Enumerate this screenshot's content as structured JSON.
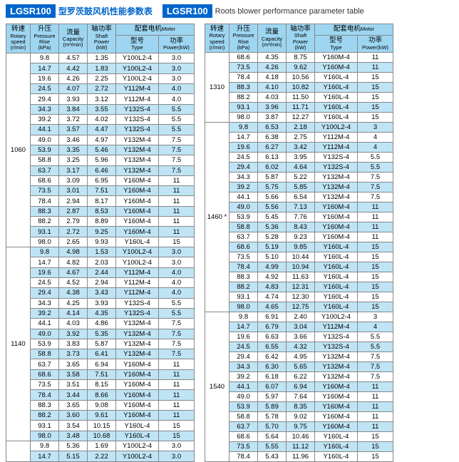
{
  "title": {
    "box": "LGSR100",
    "cn": "型罗茨鼓风机性能参数表",
    "box2": "LGSR100",
    "en": "Roots blower performance parameter table"
  },
  "headers": {
    "speed": {
      "cn": "转速",
      "en": "Rotary speed",
      "un": "(r/min)"
    },
    "press": {
      "cn": "升压",
      "en": "Pressure Rise",
      "un": "(kPa)"
    },
    "cap": {
      "cn": "流量",
      "en": "Capacity",
      "un": "(m³/min)"
    },
    "shaft": {
      "cn": "轴功率",
      "en": "Shaft Power",
      "un": "(kW)"
    },
    "motor": {
      "cn": "配套电机",
      "en": "Motor"
    },
    "type": {
      "cn": "型号",
      "en": "Type"
    },
    "power": {
      "cn": "功率",
      "en": "Power(kW)"
    }
  },
  "colors": {
    "header_bg": "#9ed6f2",
    "band_bg": "#bfe4f5",
    "border": "#888888",
    "title_blue": "#0066cc"
  },
  "left": [
    {
      "speed": "1060",
      "rows": [
        [
          "9.8",
          "4.57",
          "1.35",
          "Y100L2-4",
          "3.0"
        ],
        [
          "14.7",
          "4.42",
          "1.83",
          "Y100L2-4",
          "3.0"
        ],
        [
          "19.6",
          "4.26",
          "2.25",
          "Y100L2-4",
          "3.0"
        ],
        [
          "24.5",
          "4.07",
          "2.72",
          "Y112M-4",
          "4.0"
        ],
        [
          "29.4",
          "3.93",
          "3.12",
          "Y112M-4",
          "4.0"
        ],
        [
          "34.3",
          "3.84",
          "3.55",
          "Y132S-4",
          "5.5"
        ],
        [
          "39.2",
          "3.72",
          "4.02",
          "Y132S-4",
          "5.5"
        ],
        [
          "44.1",
          "3.57",
          "4.47",
          "Y132S-4",
          "5.5"
        ],
        [
          "49.0",
          "3.46",
          "4.97",
          "Y132M-4",
          "7.5"
        ],
        [
          "53.9",
          "3.35",
          "5.46",
          "Y132M-4",
          "7.5"
        ],
        [
          "58.8",
          "3.25",
          "5.96",
          "Y132M-4",
          "7.5"
        ],
        [
          "63.7",
          "3.17",
          "6.46",
          "Y132M-4",
          "7.5"
        ],
        [
          "68.6",
          "3.09",
          "6.95",
          "Y160M-4",
          "11"
        ],
        [
          "73.5",
          "3.01",
          "7.51",
          "Y160M-4",
          "11"
        ],
        [
          "78.4",
          "2.94",
          "8.17",
          "Y160M-4",
          "11"
        ],
        [
          "88.3",
          "2.87",
          "8.53",
          "Y160M-4",
          "11"
        ],
        [
          "88.2",
          "2.79",
          "8.89",
          "Y160M-4",
          "11"
        ],
        [
          "93.1",
          "2.72",
          "9.25",
          "Y160M-4",
          "11"
        ],
        [
          "98.0",
          "2.65",
          "9.93",
          "Y160L-4",
          "15"
        ]
      ]
    },
    {
      "speed": "1140",
      "rows": [
        [
          "9.8",
          "4.98",
          "1.53",
          "Y100L2-4",
          "3.0"
        ],
        [
          "14.7",
          "4.82",
          "2.03",
          "Y100L2-4",
          "3.0"
        ],
        [
          "19.6",
          "4.67",
          "2.44",
          "Y112M-4",
          "4.0"
        ],
        [
          "24.5",
          "4.52",
          "2.94",
          "Y112M-4",
          "4.0"
        ],
        [
          "29.4",
          "4.38",
          "3.43",
          "Y112M-4",
          "4.0"
        ],
        [
          "34.3",
          "4.25",
          "3.93",
          "Y132S-4",
          "5.5"
        ],
        [
          "39.2",
          "4.14",
          "4.35",
          "Y132S-4",
          "5.5"
        ],
        [
          "44.1",
          "4.03",
          "4.86",
          "Y132M-4",
          "7.5"
        ],
        [
          "49.0",
          "3.92",
          "5.35",
          "Y132M-4",
          "7.5"
        ],
        [
          "53.9",
          "3.83",
          "5.87",
          "Y132M-4",
          "7.5"
        ],
        [
          "58.8",
          "3.73",
          "6.41",
          "Y132M-4",
          "7.5"
        ],
        [
          "63.7",
          "3.65",
          "6.94",
          "Y160M-4",
          "11"
        ],
        [
          "68.6",
          "3.58",
          "7.51",
          "Y160M-4",
          "11"
        ],
        [
          "73.5",
          "3.51",
          "8.15",
          "Y160M-4",
          "11"
        ],
        [
          "78.4",
          "3.44",
          "8.66",
          "Y160M-4",
          "11"
        ],
        [
          "88.3",
          "3.65",
          "9.08",
          "Y160M-4",
          "11"
        ],
        [
          "88.2",
          "3.60",
          "9.61",
          "Y160M-4",
          "11"
        ],
        [
          "93.1",
          "3.54",
          "10.15",
          "Y160L-4",
          "15"
        ],
        [
          "98.0",
          "3.48",
          "10.68",
          "Y160L-4",
          "15"
        ]
      ]
    },
    {
      "speed": "",
      "rows": [
        [
          "9.8",
          "5.36",
          "1.69",
          "Y100L2-4",
          "3.0"
        ],
        [
          "14.7",
          "5.15",
          "2.22",
          "Y100L2-4",
          "3.0"
        ]
      ]
    }
  ],
  "right": [
    {
      "speed": "1310",
      "rows": [
        [
          "68.6",
          "4.35",
          "8.75",
          "Y160M-4",
          "11"
        ],
        [
          "73.5",
          "4.26",
          "9.62",
          "Y160M-4",
          "11"
        ],
        [
          "78.4",
          "4.18",
          "10.56",
          "Y160L-4",
          "15"
        ],
        [
          "88.3",
          "4.10",
          "10.82",
          "Y160L-4",
          "15"
        ],
        [
          "88.2",
          "4.03",
          "11.50",
          "Y160L-4",
          "15"
        ],
        [
          "93.1",
          "3.96",
          "11.71",
          "Y160L-4",
          "15"
        ],
        [
          "98.0",
          "3.87",
          "12.27",
          "Y160L-4",
          "15"
        ]
      ]
    },
    {
      "speed": "1460 *",
      "rows": [
        [
          "9.8",
          "6.53",
          "2.18",
          "Y100L2-4",
          "3"
        ],
        [
          "14.7",
          "6.38",
          "2.75",
          "Y112M-4",
          "4"
        ],
        [
          "19.6",
          "6.27",
          "3.42",
          "Y112M-4",
          "4"
        ],
        [
          "24.5",
          "6.13",
          "3.95",
          "Y132S-4",
          "5.5"
        ],
        [
          "29.4",
          "6.02",
          "4.64",
          "Y132S-4",
          "5.5"
        ],
        [
          "34.3",
          "5.87",
          "5.22",
          "Y132M-4",
          "7.5"
        ],
        [
          "39.2",
          "5.75",
          "5.85",
          "Y132M-4",
          "7.5"
        ],
        [
          "44.1",
          "5.66",
          "6.54",
          "Y132M-4",
          "7.5"
        ],
        [
          "49.0",
          "5.56",
          "7.13",
          "Y160M-4",
          "11"
        ],
        [
          "53.9",
          "5.45",
          "7.76",
          "Y160M-4",
          "11"
        ],
        [
          "58.8",
          "5.36",
          "8.43",
          "Y160M-4",
          "11"
        ],
        [
          "63.7",
          "5.28",
          "9.23",
          "Y160M-4",
          "11"
        ],
        [
          "68.6",
          "5.19",
          "9.85",
          "Y160L-4",
          "15"
        ],
        [
          "73.5",
          "5.10",
          "10.44",
          "Y160L-4",
          "15"
        ],
        [
          "78.4",
          "4.99",
          "10.94",
          "Y160L-4",
          "15"
        ],
        [
          "88.3",
          "4.92",
          "11.63",
          "Y160L-4",
          "15"
        ],
        [
          "88.2",
          "4.83",
          "12.31",
          "Y160L-4",
          "15"
        ],
        [
          "93.1",
          "4.74",
          "12.30",
          "Y160L-4",
          "15"
        ],
        [
          "98.0",
          "4.65",
          "12.75",
          "Y160L-4",
          "15"
        ]
      ]
    },
    {
      "speed": "1540",
      "rows": [
        [
          "9.8",
          "6.91",
          "2.40",
          "Y100L2-4",
          "3"
        ],
        [
          "14.7",
          "6.79",
          "3.04",
          "Y112M-4",
          "4"
        ],
        [
          "19.6",
          "6.63",
          "3.66",
          "Y132S-4",
          "5.5"
        ],
        [
          "24.5",
          "6.55",
          "4.32",
          "Y132S-4",
          "5.5"
        ],
        [
          "29.4",
          "6.42",
          "4.95",
          "Y132M-4",
          "7.5"
        ],
        [
          "34.3",
          "6.30",
          "5.65",
          "Y132M-4",
          "7.5"
        ],
        [
          "39.2",
          "6.18",
          "6.22",
          "Y132M-4",
          "7.5"
        ],
        [
          "44.1",
          "6.07",
          "6.94",
          "Y160M-4",
          "11"
        ],
        [
          "49.0",
          "5.97",
          "7.64",
          "Y160M-4",
          "11"
        ],
        [
          "53.9",
          "5.89",
          "8.35",
          "Y160M-4",
          "11"
        ],
        [
          "58.8",
          "5.78",
          "9.02",
          "Y160M-4",
          "11"
        ],
        [
          "63.7",
          "5.70",
          "9.75",
          "Y160M-4",
          "11"
        ],
        [
          "68.6",
          "5.64",
          "10.46",
          "Y160L-4",
          "15"
        ],
        [
          "73.5",
          "5.55",
          "11.12",
          "Y160L-4",
          "15"
        ],
        [
          "78.4",
          "5.43",
          "11.96",
          "Y160L-4",
          "15"
        ]
      ]
    }
  ]
}
